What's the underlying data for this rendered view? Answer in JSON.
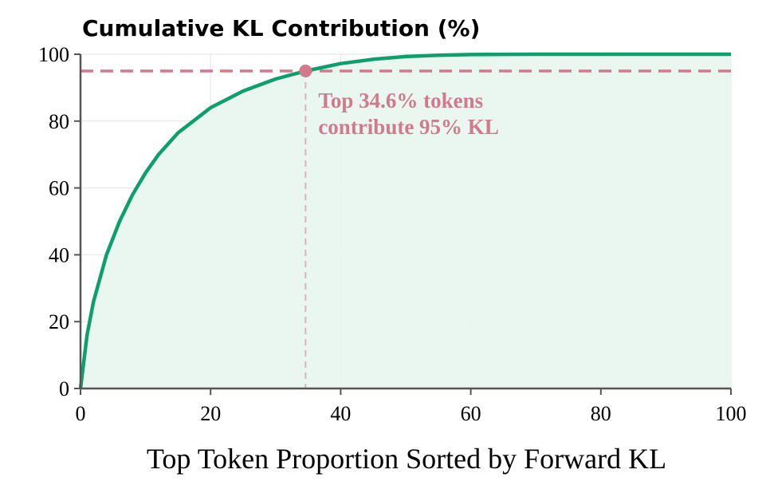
{
  "chart_data": {
    "type": "area",
    "title": "Cumulative KL Contribution (%)",
    "xlabel": "Top Token Proportion Sorted by Forward KL",
    "ylabel": "",
    "xlim": [
      0,
      100
    ],
    "ylim": [
      0,
      100
    ],
    "x_ticks": [
      "0",
      "20",
      "40",
      "60",
      "80",
      "100"
    ],
    "y_ticks": [
      "0",
      "20",
      "40",
      "60",
      "80",
      "100"
    ],
    "grid": true,
    "series": [
      {
        "x": [
          0,
          1,
          2,
          4,
          6,
          8,
          10,
          12,
          15,
          20,
          25,
          30,
          34.6,
          40,
          45,
          50,
          55,
          60,
          70,
          80,
          90,
          100
        ],
        "y": [
          0,
          16,
          26,
          40,
          50,
          58,
          64.5,
          70,
          76.5,
          84,
          89,
          92.6,
          95,
          97.2,
          98.5,
          99.3,
          99.7,
          99.9,
          100,
          100,
          100,
          100
        ]
      }
    ],
    "threshold": {
      "y": 95
    },
    "marker": {
      "x": 34.6,
      "y": 95
    },
    "annotation": {
      "line1": "Top 34.6% tokens",
      "line2": "contribute 95% KL"
    },
    "colors": {
      "curve": "#0f9e6e",
      "fill": "#e8f6ef",
      "threshold": "#d07a8c",
      "grid": "#d9d9d9",
      "axis": "#555555"
    }
  }
}
